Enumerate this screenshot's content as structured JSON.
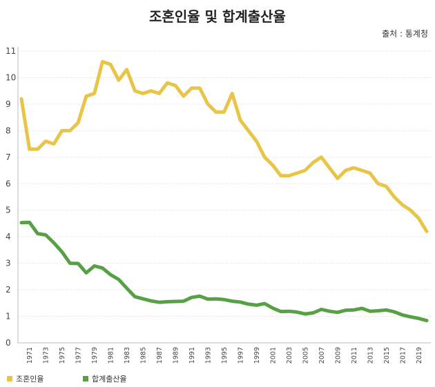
{
  "title": "조혼인율 및 합계출산율",
  "source": "출처 : 통계청",
  "colors": {
    "marriage": "#E8C547",
    "fertility": "#57A043",
    "grid": "#e6e6e6",
    "axis": "#bbbbbb",
    "tick_text": "#444444"
  },
  "chart_data": {
    "type": "line",
    "title": "조혼인율 및 합계출산율",
    "xlabel": "",
    "ylabel": "",
    "ylim": [
      0,
      11
    ],
    "yticks": [
      0,
      1,
      2,
      3,
      4,
      5,
      6,
      7,
      8,
      9,
      10,
      11
    ],
    "xlim": [
      1970,
      2020
    ],
    "xticks": [
      1971,
      1973,
      1975,
      1977,
      1979,
      1981,
      1983,
      1985,
      1987,
      1989,
      1991,
      1993,
      1995,
      1997,
      1999,
      2001,
      2003,
      2005,
      2007,
      2009,
      2011,
      2013,
      2015,
      2017,
      2019
    ],
    "grid": "horizontal",
    "legend": "bottom-left",
    "x": [
      1970,
      1971,
      1972,
      1973,
      1974,
      1975,
      1976,
      1977,
      1978,
      1979,
      1980,
      1981,
      1982,
      1983,
      1984,
      1985,
      1986,
      1987,
      1988,
      1989,
      1990,
      1991,
      1992,
      1993,
      1994,
      1995,
      1996,
      1997,
      1998,
      1999,
      2000,
      2001,
      2002,
      2003,
      2004,
      2005,
      2006,
      2007,
      2008,
      2009,
      2010,
      2011,
      2012,
      2013,
      2014,
      2015,
      2016,
      2017,
      2018,
      2019,
      2020
    ],
    "series": [
      {
        "name": "조혼인율",
        "values": [
          9.2,
          7.3,
          7.3,
          7.6,
          7.5,
          8.0,
          8.0,
          8.3,
          9.3,
          9.4,
          10.6,
          10.5,
          9.9,
          10.3,
          9.5,
          9.4,
          9.5,
          9.4,
          9.8,
          9.7,
          9.3,
          9.6,
          9.6,
          9.0,
          8.7,
          8.7,
          9.4,
          8.4,
          8.0,
          7.6,
          7.0,
          6.7,
          6.3,
          6.3,
          6.4,
          6.5,
          6.8,
          7.0,
          6.6,
          6.2,
          6.5,
          6.6,
          6.5,
          6.4,
          6.0,
          5.9,
          5.5,
          5.2,
          5.0,
          4.7,
          4.2
        ]
      },
      {
        "name": "합계출산율",
        "values": [
          4.53,
          4.54,
          4.12,
          4.07,
          3.77,
          3.43,
          3.0,
          2.99,
          2.64,
          2.9,
          2.82,
          2.57,
          2.39,
          2.06,
          1.74,
          1.66,
          1.58,
          1.53,
          1.55,
          1.56,
          1.57,
          1.71,
          1.76,
          1.65,
          1.66,
          1.63,
          1.57,
          1.54,
          1.46,
          1.42,
          1.48,
          1.31,
          1.18,
          1.19,
          1.16,
          1.09,
          1.13,
          1.26,
          1.19,
          1.15,
          1.23,
          1.24,
          1.3,
          1.19,
          1.21,
          1.24,
          1.17,
          1.05,
          0.98,
          0.92,
          0.84
        ]
      }
    ]
  }
}
